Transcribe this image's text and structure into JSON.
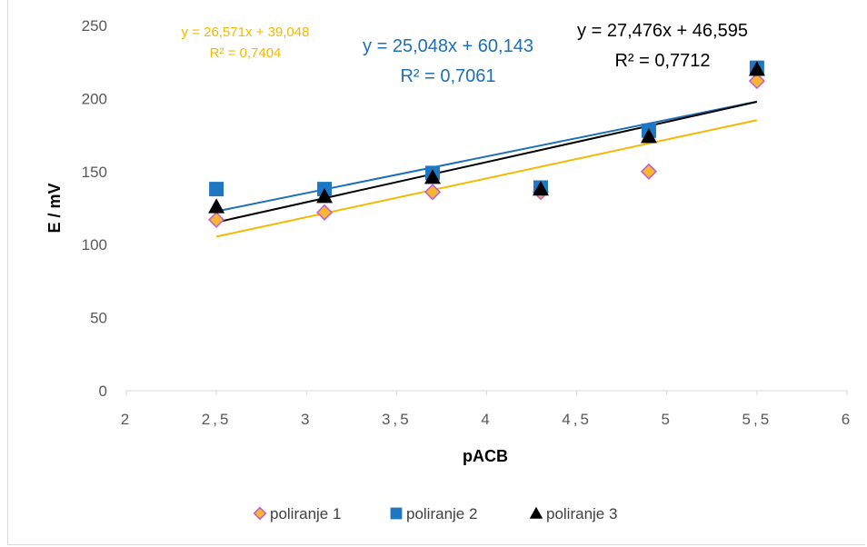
{
  "chart_data": {
    "type": "scatter",
    "xlabel": "pACB",
    "ylabel": "E / mV",
    "xlim": [
      2,
      6
    ],
    "ylim": [
      0,
      250
    ],
    "x_ticks": [
      "2",
      "2,5",
      "3",
      "3,5",
      "4",
      "4,5",
      "5",
      "5,5",
      "6"
    ],
    "y_ticks": [
      "0",
      "50",
      "100",
      "150",
      "200",
      "250"
    ],
    "grid": false,
    "legend_position": "bottom",
    "series": [
      {
        "name": "poliranje 1",
        "marker": "diamond",
        "color": "#f5b731",
        "edge_color": "#c25bd0",
        "x": [
          2.5,
          3.1,
          3.7,
          4.3,
          4.9,
          5.5
        ],
        "y": [
          117,
          122,
          136,
          136,
          150,
          212
        ],
        "trendline": {
          "slope": 26.571,
          "intercept": 39.048,
          "color": "#f5b800",
          "equation": "y = 26,571x + 39,048",
          "r2": "R² = 0,7404"
        }
      },
      {
        "name": "poliranje 2",
        "marker": "square",
        "color": "#1f77c4",
        "x": [
          2.5,
          3.1,
          3.7,
          4.3,
          4.9,
          5.5
        ],
        "y": [
          138,
          138,
          149,
          139,
          178,
          221
        ],
        "trendline": {
          "slope": 25.048,
          "intercept": 60.143,
          "color": "#1f6fb5",
          "equation": "y = 25,048x + 60,143",
          "r2": "R² = 0,7061"
        }
      },
      {
        "name": "poliranje 3",
        "marker": "triangle",
        "color": "#000000",
        "x": [
          2.5,
          3.1,
          3.7,
          4.3,
          4.9,
          5.5
        ],
        "y": [
          126,
          133,
          146,
          138,
          174,
          220
        ],
        "trendline": {
          "slope": 27.476,
          "intercept": 46.595,
          "color": "#000000",
          "equation": "y = 27,476x + 46,595",
          "r2": "R² = 0,7712"
        }
      }
    ]
  }
}
